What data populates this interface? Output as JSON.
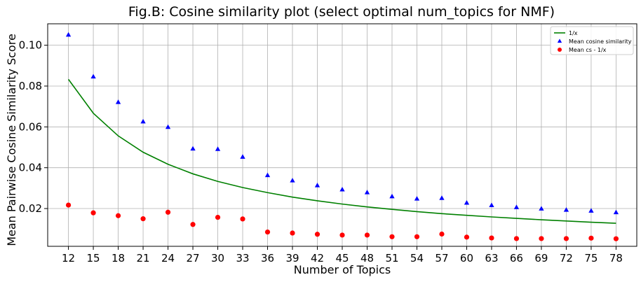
{
  "chart_data": {
    "type": "scatter",
    "title": "Fig.B: Cosine similarity plot (select optimal num_topics for NMF)",
    "xlabel": "Number of Topics",
    "ylabel": "Mean Pairwise Cosine Similarity Score",
    "x": [
      12,
      15,
      18,
      21,
      24,
      27,
      30,
      33,
      36,
      39,
      42,
      45,
      48,
      51,
      54,
      57,
      60,
      63,
      66,
      69,
      72,
      75,
      78
    ],
    "xlim": [
      9.5,
      80.5
    ],
    "ylim": [
      0.0015,
      0.1105
    ],
    "yticks": [
      0.02,
      0.04,
      0.06,
      0.08,
      0.1
    ],
    "ytick_labels": [
      "0.02",
      "0.04",
      "0.06",
      "0.08",
      "0.10"
    ],
    "grid": true,
    "legend_position": "top-right",
    "series": [
      {
        "name": "1/x",
        "kind": "line",
        "color": "#008000",
        "values": [
          0.0833,
          0.0667,
          0.0556,
          0.0476,
          0.0417,
          0.037,
          0.0333,
          0.0303,
          0.0278,
          0.0256,
          0.0238,
          0.0222,
          0.0208,
          0.0196,
          0.0185,
          0.0175,
          0.0167,
          0.0159,
          0.0152,
          0.0145,
          0.0139,
          0.0133,
          0.0128
        ]
      },
      {
        "name": "Mean cosine similarity",
        "kind": "triangle",
        "color": "#0000ff",
        "values": [
          0.105,
          0.0845,
          0.072,
          0.0625,
          0.0598,
          0.0492,
          0.049,
          0.0452,
          0.0362,
          0.0336,
          0.0312,
          0.0292,
          0.0278,
          0.0258,
          0.0247,
          0.025,
          0.0227,
          0.0215,
          0.0205,
          0.0198,
          0.0192,
          0.0188,
          0.018
        ]
      },
      {
        "name": "Mean cs - 1/x",
        "kind": "circle",
        "color": "#ff0000",
        "values": [
          0.0217,
          0.0179,
          0.0165,
          0.015,
          0.0182,
          0.0122,
          0.0157,
          0.0149,
          0.0085,
          0.008,
          0.0074,
          0.007,
          0.007,
          0.0062,
          0.0062,
          0.0075,
          0.006,
          0.0056,
          0.0053,
          0.0053,
          0.0053,
          0.0055,
          0.0052
        ]
      }
    ]
  }
}
